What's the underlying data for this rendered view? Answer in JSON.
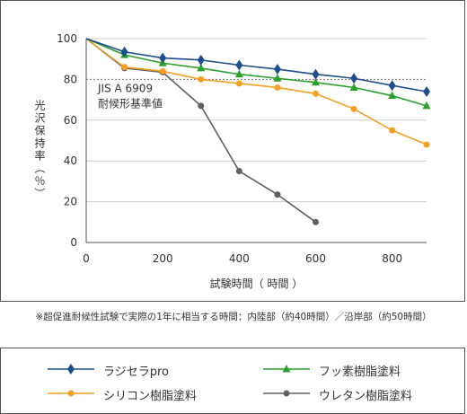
{
  "chart_data": {
    "type": "line",
    "x": [
      0,
      100,
      200,
      300,
      400,
      500,
      600,
      700,
      800,
      890
    ],
    "xlabel": "試験時間（ 時間 ）",
    "ylabel": "光沢保持率（％）",
    "xlim": [
      0,
      890
    ],
    "ylim": [
      0,
      100
    ],
    "xticks": [
      0,
      200,
      400,
      600,
      800
    ],
    "yticks": [
      0,
      20,
      40,
      60,
      80,
      100
    ],
    "grid": "horizontal",
    "reference_line": {
      "y": 80,
      "label_line1": "JIS A 6909",
      "label_line2": "耐候形基準値"
    },
    "series": [
      {
        "name": "ラジセラpro",
        "color": "#1f4e8c",
        "marker": "diamond",
        "points": [
          [
            0,
            100
          ],
          [
            100,
            93.5
          ],
          [
            200,
            90.5
          ],
          [
            300,
            89.5
          ],
          [
            400,
            87
          ],
          [
            500,
            85
          ],
          [
            600,
            82.5
          ],
          [
            700,
            80.5
          ],
          [
            800,
            77
          ],
          [
            890,
            74
          ]
        ]
      },
      {
        "name": "フッ素樹脂塗料",
        "color": "#2ca02c",
        "marker": "triangle",
        "points": [
          [
            0,
            100
          ],
          [
            100,
            92
          ],
          [
            200,
            88
          ],
          [
            300,
            85.5
          ],
          [
            400,
            82.5
          ],
          [
            500,
            80.5
          ],
          [
            600,
            78.5
          ],
          [
            700,
            76
          ],
          [
            800,
            72
          ],
          [
            890,
            67
          ]
        ]
      },
      {
        "name": "シリコン樹脂塗料",
        "color": "#f5a023",
        "marker": "circle",
        "points": [
          [
            0,
            100
          ],
          [
            100,
            86
          ],
          [
            200,
            84
          ],
          [
            300,
            80
          ],
          [
            400,
            78
          ],
          [
            500,
            76
          ],
          [
            600,
            73
          ],
          [
            700,
            65.5
          ],
          [
            800,
            55
          ],
          [
            890,
            48
          ]
        ]
      },
      {
        "name": "ウレタン樹脂塗料",
        "color": "#606060",
        "marker": "circle",
        "points": [
          [
            0,
            100
          ],
          [
            100,
            85.5
          ],
          [
            200,
            83.5
          ],
          [
            300,
            67
          ],
          [
            400,
            35
          ],
          [
            500,
            23.5
          ],
          [
            600,
            10
          ]
        ]
      }
    ]
  },
  "footnote": "※超促進耐候性試験で実際の1年に相当する時間：内陸部（約40時間）／沿岸部（約50時間）"
}
